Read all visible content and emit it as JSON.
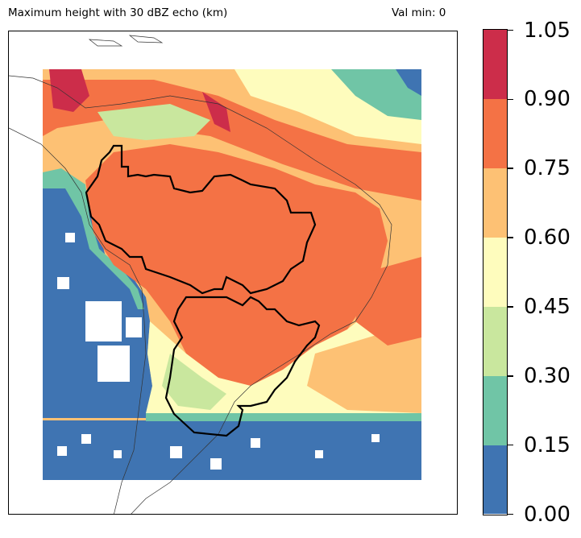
{
  "header": {
    "title": "Maximum height with 30 dBZ echo (km)",
    "stat": "Val min: 0"
  },
  "colorbar": {
    "levels": [
      "0.00",
      "0.15",
      "0.30",
      "0.45",
      "0.60",
      "0.75",
      "0.90",
      "1.05"
    ],
    "colors": [
      "#3f74b2",
      "#70c5a6",
      "#c9e79e",
      "#fefcbd",
      "#fdc174",
      "#f47245",
      "#cc2d4a"
    ]
  },
  "map_colors": {
    "ocean_low": "#3f74b2",
    "mask": "#ffffff",
    "outline": "#000000"
  }
}
